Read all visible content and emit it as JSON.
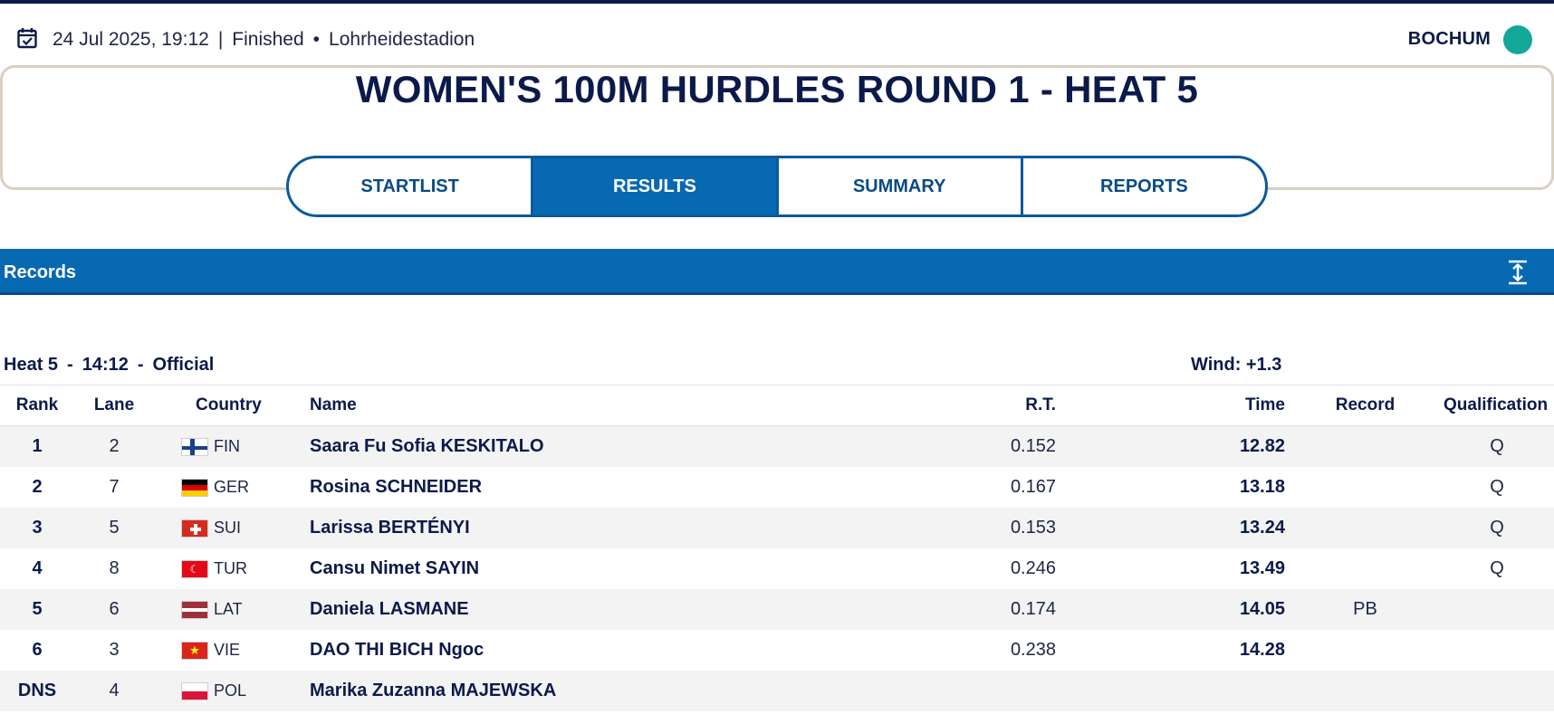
{
  "header": {
    "date": "24 Jul 2025, 19:12",
    "status": "Finished",
    "venue": "Lohrheidestadion",
    "city": "BOCHUM",
    "calendar_icon": "calendar-check-icon",
    "status_dot_color": "#11a89a"
  },
  "event": {
    "title": "WOMEN'S 100M HURDLES ROUND 1 - HEAT 5"
  },
  "tabs": [
    {
      "label": "STARTLIST",
      "active": false
    },
    {
      "label": "RESULTS",
      "active": true
    },
    {
      "label": "SUMMARY",
      "active": false
    },
    {
      "label": "REPORTS",
      "active": false
    }
  ],
  "records": {
    "label": "Records",
    "expand_icon": "expand-vertical-icon"
  },
  "heat": {
    "name": "Heat 5",
    "time": "14:12",
    "status": "Official",
    "wind": "Wind: +1.3"
  },
  "columns": {
    "rank": "Rank",
    "lane": "Lane",
    "country": "Country",
    "name": "Name",
    "rt": "R.T.",
    "time": "Time",
    "record": "Record",
    "qualification": "Qualification"
  },
  "results": [
    {
      "rank": "1",
      "lane": "2",
      "country": "FIN",
      "flag": "flag-fin",
      "name": "Saara Fu Sofia KESKITALO",
      "rt": "0.152",
      "time": "12.82",
      "record": "",
      "qual": "Q"
    },
    {
      "rank": "2",
      "lane": "7",
      "country": "GER",
      "flag": "flag-ger",
      "name": "Rosina SCHNEIDER",
      "rt": "0.167",
      "time": "13.18",
      "record": "",
      "qual": "Q"
    },
    {
      "rank": "3",
      "lane": "5",
      "country": "SUI",
      "flag": "flag-sui",
      "name": "Larissa BERTÉNYI",
      "rt": "0.153",
      "time": "13.24",
      "record": "",
      "qual": "Q"
    },
    {
      "rank": "4",
      "lane": "8",
      "country": "TUR",
      "flag": "flag-tur",
      "name": "Cansu Nimet SAYIN",
      "rt": "0.246",
      "time": "13.49",
      "record": "",
      "qual": "Q"
    },
    {
      "rank": "5",
      "lane": "6",
      "country": "LAT",
      "flag": "flag-lat",
      "name": "Daniela LASMANE",
      "rt": "0.174",
      "time": "14.05",
      "record": "PB",
      "qual": ""
    },
    {
      "rank": "6",
      "lane": "3",
      "country": "VIE",
      "flag": "flag-vie",
      "name": "DAO THI BICH Ngoc",
      "rt": "0.238",
      "time": "14.28",
      "record": "",
      "qual": ""
    },
    {
      "rank": "DNS",
      "lane": "4",
      "country": "POL",
      "flag": "flag-pol",
      "name": "Marika Zuzanna MAJEWSKA",
      "rt": "",
      "time": "",
      "record": "",
      "qual": ""
    }
  ]
}
